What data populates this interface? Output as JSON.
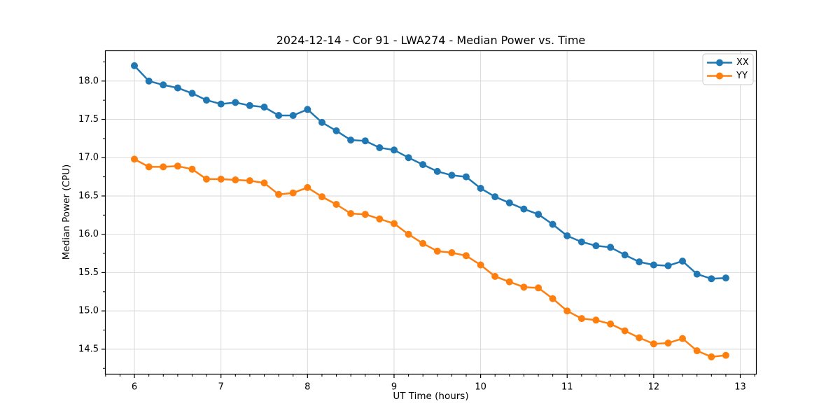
{
  "chart_data": {
    "type": "line",
    "title": "2024-12-14 - Cor 91 - LWA274 - Median Power vs. Time",
    "xlabel": "UT Time (hours)",
    "ylabel": "Median Power (CPU)",
    "grid": true,
    "legend_position": "upper right",
    "xlim": [
      5.66,
      13.19
    ],
    "ylim": [
      14.17,
      18.4
    ],
    "xticks": [
      6,
      7,
      8,
      9,
      10,
      11,
      12,
      13
    ],
    "yticks": [
      14.5,
      15.0,
      15.5,
      16.0,
      16.5,
      17.0,
      17.5,
      18.0
    ],
    "x_minor_step": 0.16667,
    "y_minor_step": 0.25,
    "x": [
      6.0,
      6.167,
      6.333,
      6.5,
      6.667,
      6.833,
      7.0,
      7.167,
      7.333,
      7.5,
      7.667,
      7.833,
      8.0,
      8.167,
      8.333,
      8.5,
      8.667,
      8.833,
      9.0,
      9.167,
      9.333,
      9.5,
      9.667,
      9.833,
      10.0,
      10.167,
      10.333,
      10.5,
      10.667,
      10.833,
      11.0,
      11.167,
      11.333,
      11.5,
      11.667,
      11.833,
      12.0,
      12.167,
      12.333,
      12.5,
      12.667,
      12.833
    ],
    "series": [
      {
        "name": "XX",
        "color": "#1f77b4",
        "marker": "circle",
        "values": [
          18.2,
          18.0,
          17.95,
          17.91,
          17.84,
          17.75,
          17.7,
          17.72,
          17.68,
          17.66,
          17.55,
          17.55,
          17.63,
          17.46,
          17.35,
          17.23,
          17.22,
          17.13,
          17.1,
          17.0,
          16.91,
          16.82,
          16.77,
          16.75,
          16.6,
          16.49,
          16.41,
          16.33,
          16.26,
          16.13,
          15.98,
          15.9,
          15.85,
          15.83,
          15.73,
          15.64,
          15.6,
          15.59,
          15.65,
          15.48,
          15.42,
          15.43
        ]
      },
      {
        "name": "YY",
        "color": "#ff7f0e",
        "marker": "circle",
        "values": [
          16.98,
          16.88,
          16.88,
          16.89,
          16.85,
          16.72,
          16.72,
          16.71,
          16.7,
          16.67,
          16.52,
          16.54,
          16.61,
          16.49,
          16.39,
          16.27,
          16.26,
          16.2,
          16.14,
          16.0,
          15.88,
          15.78,
          15.76,
          15.72,
          15.6,
          15.45,
          15.38,
          15.31,
          15.3,
          15.16,
          15.0,
          14.9,
          14.88,
          14.83,
          14.74,
          14.65,
          14.57,
          14.58,
          14.64,
          14.48,
          14.4,
          14.42
        ]
      }
    ],
    "colors": {
      "series_xx": "#1f77b4",
      "series_yy": "#ff7f0e",
      "grid": "#d9d9d9",
      "spine": "#000000",
      "legend_border": "#cccccc",
      "background": "#ffffff"
    }
  }
}
